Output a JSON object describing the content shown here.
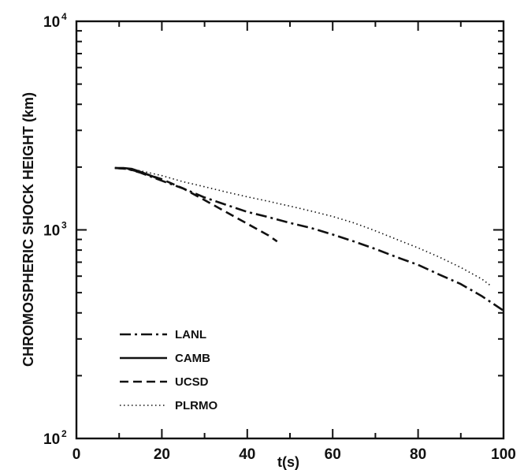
{
  "chart_data": {
    "type": "line",
    "title": "",
    "xlabel": "t(s)",
    "ylabel": "CHROMOSPHERIC SHOCK HEIGHT (km)",
    "xlim": [
      0,
      100
    ],
    "ylim": [
      100,
      10000
    ],
    "yscale": "log",
    "x_ticks": [
      {
        "value": 0,
        "label": "0"
      },
      {
        "value": 20,
        "label": "20"
      },
      {
        "value": 40,
        "label": "40"
      },
      {
        "value": 60,
        "label": "60"
      },
      {
        "value": 80,
        "label": "80"
      },
      {
        "value": 100,
        "label": "100"
      }
    ],
    "y_ticks": [
      {
        "value": 100,
        "base": "10",
        "exp": "2"
      },
      {
        "value": 1000,
        "base": "10",
        "exp": "3"
      },
      {
        "value": 10000,
        "base": "10",
        "exp": "4"
      }
    ],
    "grid": false,
    "legend_position": "bottom-left",
    "series": [
      {
        "name": "LANL",
        "dash": "dash-dot",
        "x": [
          9,
          12,
          15,
          20,
          25,
          30,
          35,
          40,
          45,
          50,
          55,
          60,
          65,
          70,
          75,
          80,
          85,
          90,
          95,
          100
        ],
        "y": [
          1980,
          1960,
          1880,
          1720,
          1580,
          1430,
          1320,
          1220,
          1150,
          1080,
          1020,
          950,
          880,
          810,
          740,
          680,
          610,
          550,
          480,
          410
        ]
      },
      {
        "name": "CAMB",
        "dash": "solid",
        "x": [
          9,
          11,
          13,
          15,
          18,
          20
        ],
        "y": [
          1980,
          1980,
          1960,
          1900,
          1800,
          1730
        ]
      },
      {
        "name": "UCSD",
        "dash": "dashed",
        "x": [
          9,
          12,
          15,
          20,
          25,
          30,
          35,
          40,
          43,
          45,
          47
        ],
        "y": [
          1980,
          1960,
          1890,
          1750,
          1580,
          1390,
          1220,
          1070,
          990,
          940,
          880
        ]
      },
      {
        "name": "PLRMO",
        "dash": "dotted",
        "x": [
          9,
          12,
          15,
          20,
          25,
          30,
          35,
          40,
          45,
          50,
          55,
          60,
          65,
          70,
          75,
          80,
          85,
          90,
          95,
          97
        ],
        "y": [
          1980,
          1960,
          1920,
          1820,
          1700,
          1610,
          1520,
          1440,
          1370,
          1300,
          1230,
          1160,
          1080,
          990,
          900,
          820,
          740,
          660,
          580,
          540
        ]
      }
    ]
  }
}
